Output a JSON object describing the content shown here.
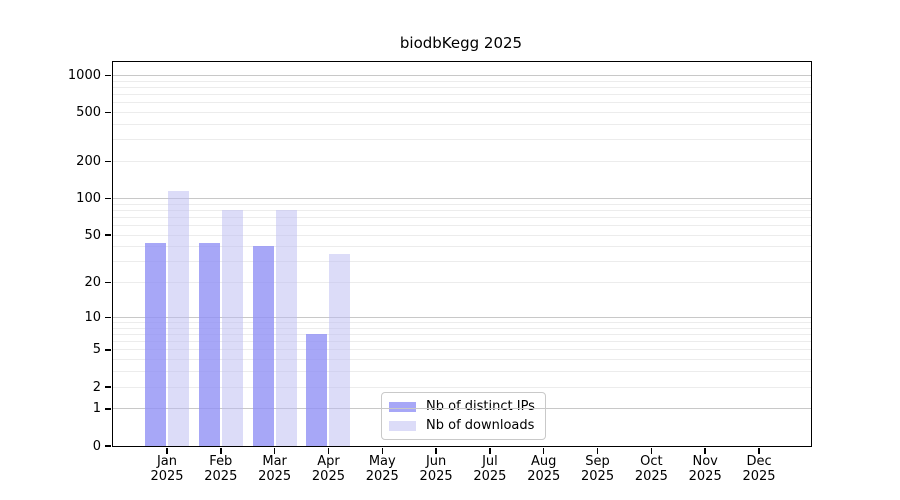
{
  "title": "biodbKegg 2025",
  "chart_data": {
    "type": "bar",
    "title": "biodbKegg 2025",
    "yscale": "log1p",
    "ylim": [
      0,
      1280
    ],
    "grid": "horizontal",
    "categories": [
      "Jan",
      "Feb",
      "Mar",
      "Apr",
      "May",
      "Jun",
      "Jul",
      "Aug",
      "Sep",
      "Oct",
      "Nov",
      "Dec"
    ],
    "year": "2025",
    "series": [
      {
        "name": "Nb of distinct IPs",
        "color": "#a7a7f7",
        "bar_fill": "rgba(145,145,245,0.8)",
        "values": [
          43,
          43,
          41,
          7,
          0,
          0,
          0,
          0,
          0,
          0,
          0,
          0
        ]
      },
      {
        "name": "Nb of downloads",
        "color": "#dcdcf8",
        "bar_fill": "rgba(185,185,241,0.5)",
        "values": [
          115,
          80,
          80,
          35,
          0,
          0,
          0,
          0,
          0,
          0,
          0,
          0
        ]
      }
    ],
    "ytick_labels": [
      "0",
      "1",
      "2",
      "5",
      "10",
      "20",
      "50",
      "100",
      "200",
      "500",
      "1000"
    ],
    "grid_major_values": [
      1,
      10,
      100,
      1000
    ],
    "legend_position": "inside-bottom-center"
  },
  "colors": {
    "major_grid": "#c8c8c8",
    "minor_grid": "#ececec",
    "spine": "#000000",
    "legend_border": "#c9c9c9",
    "background": "#ffffff",
    "text": "#000000"
  }
}
